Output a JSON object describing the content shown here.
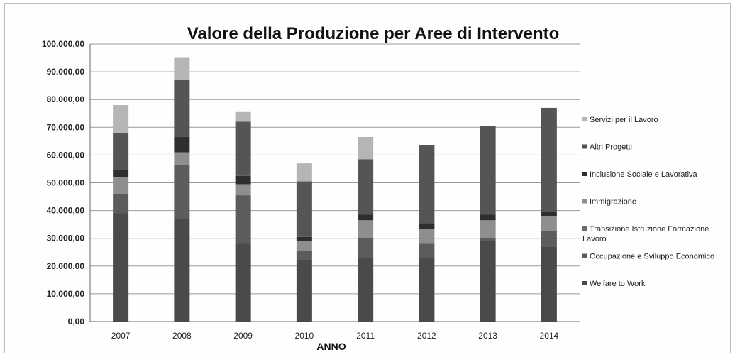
{
  "chart_data": {
    "type": "bar",
    "stacked": true,
    "title": "Valore della Produzione per Aree di Intervento",
    "xlabel": "ANNO",
    "ylabel": "",
    "ylim": [
      0,
      100000
    ],
    "y_ticks": [
      "0,00",
      "10.000,00",
      "20.000,00",
      "30.000,00",
      "40.000,00",
      "50.000,00",
      "60.000,00",
      "70.000,00",
      "80.000,00",
      "90.000,00",
      "100.000,00"
    ],
    "categories": [
      "2007",
      "2008",
      "2009",
      "2010",
      "2011",
      "2012",
      "2013",
      "2014"
    ],
    "grid": true,
    "legend_position": "right",
    "series": [
      {
        "name": "Welfare to Work",
        "color": "#4a4a4a",
        "values": [
          39000,
          37000,
          28000,
          22000,
          23000,
          23000,
          29000,
          27000
        ]
      },
      {
        "name": "Occupazione e Sviluppo Economico",
        "color": "#5c5c5c",
        "values": [
          7000,
          19500,
          17500,
          3500,
          7000,
          5000,
          1000,
          5500
        ]
      },
      {
        "name": "Transizione Istruzione Formazione Lavoro",
        "color": "#6b6b6b",
        "values": [
          0,
          0,
          0,
          0,
          0,
          0,
          0,
          0
        ]
      },
      {
        "name": "Immigrazione",
        "color": "#8e8e8e",
        "values": [
          6000,
          4500,
          4000,
          3500,
          6500,
          5500,
          6500,
          5500
        ]
      },
      {
        "name": "Inclusione Sociale e Lavorativa",
        "color": "#2e2e2e",
        "values": [
          2500,
          5500,
          3000,
          1500,
          2000,
          2000,
          2000,
          1500
        ]
      },
      {
        "name": "Altri Progetti",
        "color": "#555555",
        "values": [
          13500,
          20500,
          19500,
          20000,
          20000,
          28000,
          32000,
          37500
        ]
      },
      {
        "name": "Servizi per il Lavoro",
        "color": "#b5b5b5",
        "values": [
          10000,
          8000,
          3500,
          6500,
          8000,
          0,
          0,
          0
        ]
      }
    ]
  }
}
